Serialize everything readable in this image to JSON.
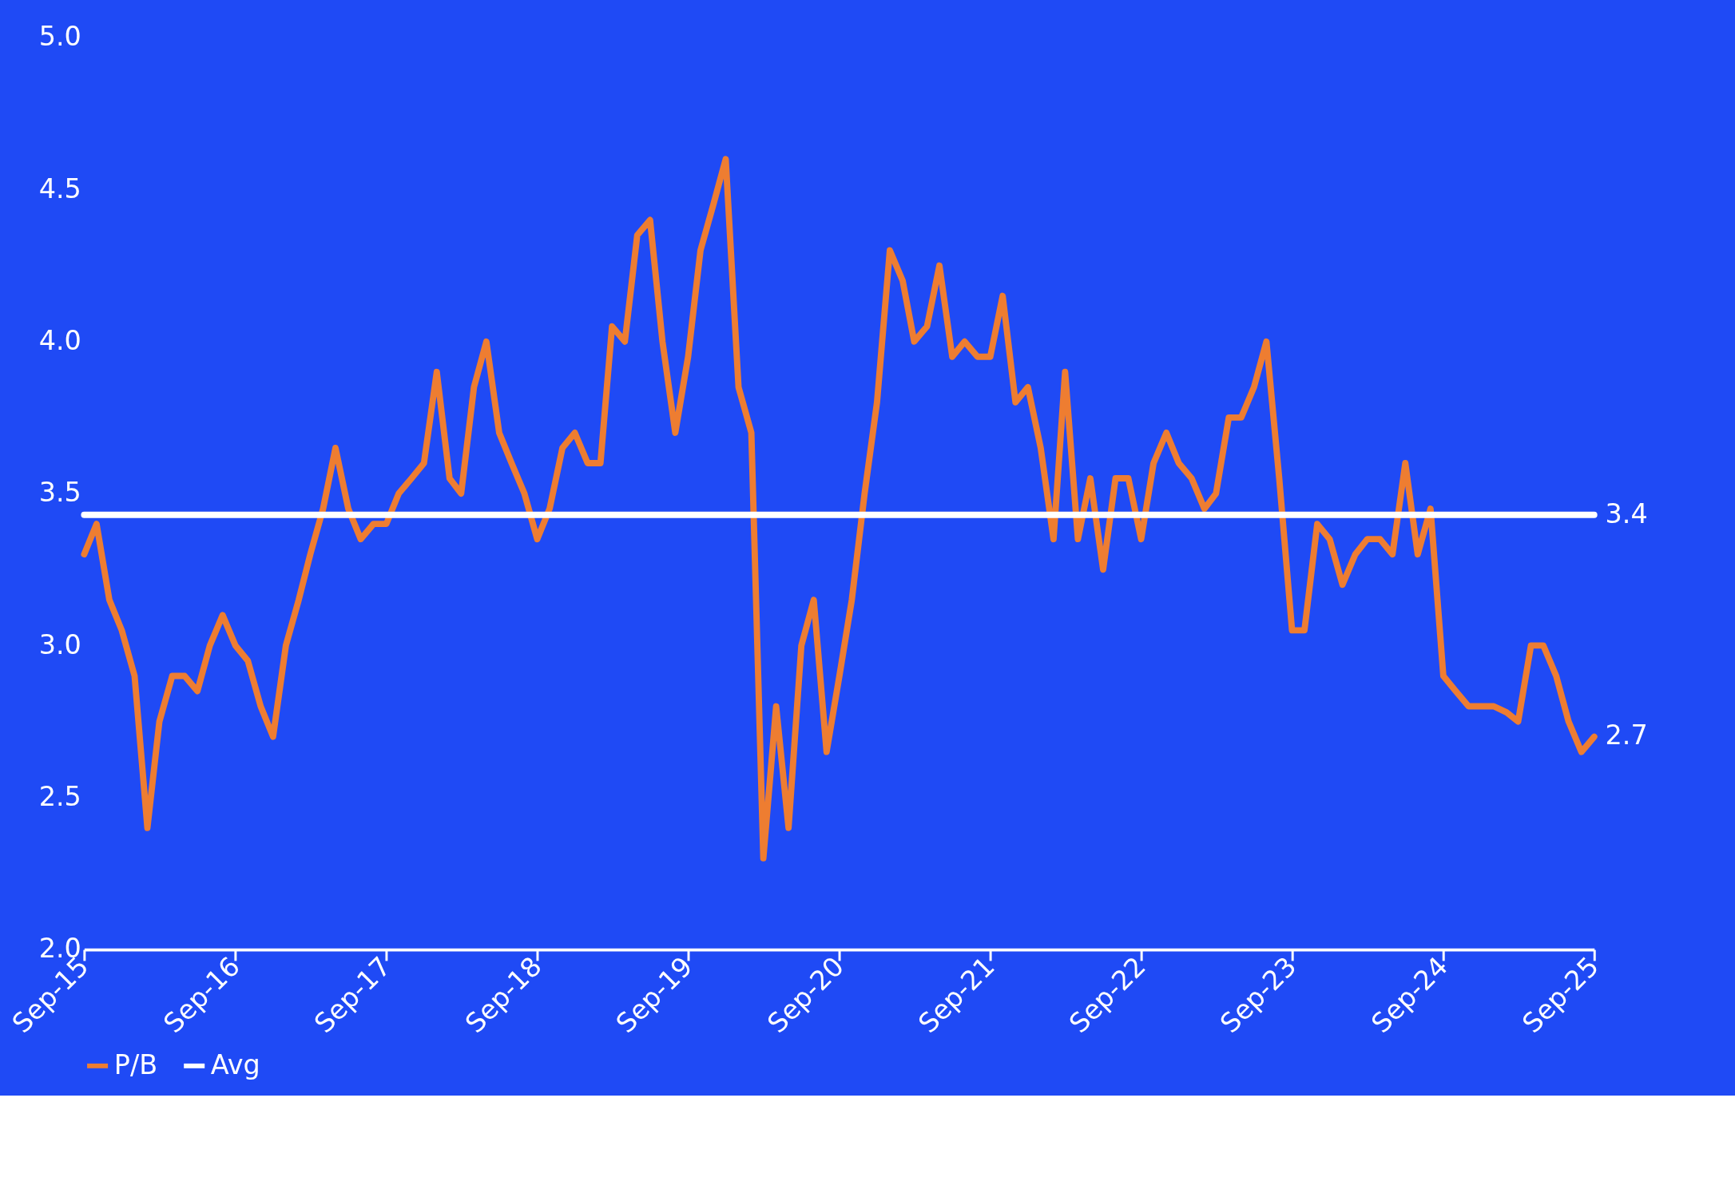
{
  "chart_data": {
    "type": "line",
    "x": [
      "2015-09",
      "2015-10",
      "2015-11",
      "2015-12",
      "2016-01",
      "2016-02",
      "2016-03",
      "2016-04",
      "2016-05",
      "2016-06",
      "2016-07",
      "2016-08",
      "2016-09",
      "2016-10",
      "2016-11",
      "2016-12",
      "2017-01",
      "2017-02",
      "2017-03",
      "2017-04",
      "2017-05",
      "2017-06",
      "2017-07",
      "2017-08",
      "2017-09",
      "2017-10",
      "2017-11",
      "2017-12",
      "2018-01",
      "2018-02",
      "2018-03",
      "2018-04",
      "2018-05",
      "2018-06",
      "2018-07",
      "2018-08",
      "2018-09",
      "2018-10",
      "2018-11",
      "2018-12",
      "2019-01",
      "2019-02",
      "2019-03",
      "2019-04",
      "2019-05",
      "2019-06",
      "2019-07",
      "2019-08",
      "2019-09",
      "2019-10",
      "2019-11",
      "2019-12",
      "2020-01",
      "2020-02",
      "2020-03",
      "2020-04",
      "2020-05",
      "2020-06",
      "2020-07",
      "2020-08",
      "2020-09",
      "2020-10",
      "2020-11",
      "2020-12",
      "2021-01",
      "2021-02",
      "2021-03",
      "2021-04",
      "2021-05",
      "2021-06",
      "2021-07",
      "2021-08",
      "2021-09",
      "2021-10",
      "2021-11",
      "2021-12",
      "2022-01",
      "2022-02",
      "2022-03",
      "2022-04",
      "2022-05",
      "2022-06",
      "2022-07",
      "2022-08",
      "2022-09",
      "2022-10",
      "2022-11",
      "2022-12",
      "2023-01",
      "2023-02",
      "2023-03",
      "2023-04",
      "2023-05",
      "2023-06",
      "2023-07",
      "2023-08",
      "2023-09",
      "2023-10",
      "2023-11",
      "2023-12",
      "2024-01",
      "2024-02",
      "2024-03",
      "2024-04",
      "2024-05",
      "2024-06",
      "2024-07",
      "2024-08",
      "2024-09",
      "2024-10",
      "2024-11",
      "2024-12",
      "2025-01",
      "2025-02",
      "2025-03",
      "2025-04",
      "2025-05",
      "2025-06",
      "2025-07",
      "2025-08",
      "2025-09"
    ],
    "series": [
      {
        "name": "P/B",
        "color": "#ee7d31",
        "values": [
          3.3,
          3.4,
          3.15,
          3.05,
          2.9,
          2.4,
          2.75,
          2.9,
          2.9,
          2.85,
          3.0,
          3.1,
          3.0,
          2.95,
          2.8,
          2.7,
          3.0,
          3.15,
          3.3,
          3.45,
          3.65,
          3.45,
          3.35,
          3.4,
          3.4,
          3.5,
          3.55,
          3.6,
          3.9,
          3.55,
          3.5,
          3.85,
          4.0,
          3.7,
          3.6,
          3.5,
          3.35,
          3.45,
          3.65,
          3.7,
          3.6,
          3.6,
          4.05,
          4.0,
          4.35,
          4.4,
          4.0,
          3.7,
          3.95,
          4.3,
          4.45,
          4.6,
          3.85,
          3.7,
          2.3,
          2.8,
          2.4,
          3.0,
          3.15,
          2.65,
          2.9,
          3.15,
          3.5,
          3.8,
          4.3,
          4.2,
          4.0,
          4.05,
          4.25,
          3.95,
          4.0,
          3.95,
          3.95,
          4.15,
          3.8,
          3.85,
          3.65,
          3.35,
          3.9,
          3.35,
          3.55,
          3.25,
          3.55,
          3.55,
          3.35,
          3.6,
          3.7,
          3.6,
          3.55,
          3.45,
          3.5,
          3.75,
          3.75,
          3.85,
          4.0,
          3.55,
          3.05,
          3.05,
          3.4,
          3.35,
          3.2,
          3.3,
          3.35,
          3.35,
          3.3,
          3.6,
          3.3,
          3.45,
          2.9,
          2.85,
          2.8,
          2.8,
          2.8,
          2.78,
          2.75,
          3.0,
          3.0,
          2.9,
          2.75,
          2.65,
          2.7
        ]
      },
      {
        "name": "Avg",
        "color": "#ffffff",
        "x": [
          "2015-09",
          "2025-09"
        ],
        "values": [
          3.43,
          3.43
        ]
      }
    ],
    "xlim": [
      "2015-09",
      "2025-09"
    ],
    "xticks": [
      {
        "value": "2015-09",
        "label": "Sep-15"
      },
      {
        "value": "2016-09",
        "label": "Sep-16"
      },
      {
        "value": "2017-09",
        "label": "Sep-17"
      },
      {
        "value": "2018-09",
        "label": "Sep-18"
      },
      {
        "value": "2019-09",
        "label": "Sep-19"
      },
      {
        "value": "2020-09",
        "label": "Sep-20"
      },
      {
        "value": "2021-09",
        "label": "Sep-21"
      },
      {
        "value": "2022-09",
        "label": "Sep-22"
      },
      {
        "value": "2023-09",
        "label": "Sep-23"
      },
      {
        "value": "2024-09",
        "label": "Sep-24"
      },
      {
        "value": "2025-09",
        "label": "Sep-25"
      }
    ],
    "ylim": [
      2,
      5
    ],
    "yticks": [
      {
        "value": 2,
        "label": "2.0"
      },
      {
        "value": 2.5,
        "label": "2.5"
      },
      {
        "value": 3,
        "label": "3.0"
      },
      {
        "value": 3.5,
        "label": "3.5"
      },
      {
        "value": 4,
        "label": "4.0"
      },
      {
        "value": 4.5,
        "label": "4.5"
      },
      {
        "value": 5,
        "label": "5.0"
      }
    ],
    "annotations": [
      {
        "text": "3.4",
        "x": "2025-09",
        "y": 3.43
      },
      {
        "text": "2.7",
        "x": "2025-09",
        "y": 2.7
      }
    ],
    "legend": "bottom",
    "grid": false,
    "marker": "none",
    "line_style": "solid"
  }
}
